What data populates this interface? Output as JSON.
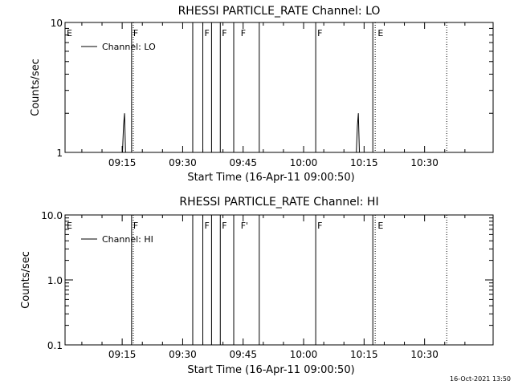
{
  "footer_timestamp": "16-Oct-2021 13:50",
  "chart_data": [
    {
      "type": "line",
      "title": "RHESSI PARTICLE_RATE Channel: LO",
      "xlabel": "Start Time (16-Apr-11 09:00:50)",
      "ylabel": "Counts/sec",
      "yscale": "log",
      "ylim": [
        1,
        10
      ],
      "y_ticks": [
        "1",
        "10"
      ],
      "x_range": [
        "09:00:50",
        "10:47:00"
      ],
      "x_ticks": [
        "09:15",
        "09:30",
        "09:45",
        "10:00",
        "10:15",
        "10:30"
      ],
      "legend": "Channel: LO",
      "legend_position": "top-left",
      "series": [
        {
          "name": "Channel: LO",
          "x": [
            "09:15:05",
            "09:15:20",
            "09:15:35",
            "09:15:50",
            "10:13:05",
            "10:13:20",
            "10:13:35",
            "10:13:50"
          ],
          "y": [
            1,
            1.6,
            2.0,
            1,
            1,
            1.6,
            2.0,
            1
          ]
        }
      ],
      "solid_markers": [
        "09:17:20",
        "09:32:30",
        "09:35:00",
        "09:37:10",
        "09:39:20",
        "09:42:40",
        "09:49:00",
        "10:03:00",
        "10:17:10"
      ],
      "dotted_markers": [
        "09:17:45",
        "10:17:45",
        "10:35:30"
      ],
      "marker_labels": [
        {
          "x": "09:00:50",
          "text": "E"
        },
        {
          "x": "09:17:20",
          "text": "F"
        },
        {
          "x": "09:35:00",
          "text": "F"
        },
        {
          "x": "09:39:20",
          "text": "F"
        },
        {
          "x": "09:44:00",
          "text": "F"
        },
        {
          "x": "10:03:00",
          "text": "F"
        },
        {
          "x": "10:18:00",
          "text": "E"
        }
      ]
    },
    {
      "type": "line",
      "title": "RHESSI PARTICLE_RATE Channel: HI",
      "xlabel": "Start Time (16-Apr-11 09:00:50)",
      "ylabel": "Counts/sec",
      "yscale": "log",
      "ylim": [
        0.1,
        10
      ],
      "y_ticks": [
        "0.1",
        "1.0",
        "10.0"
      ],
      "x_range": [
        "09:00:50",
        "10:47:00"
      ],
      "x_ticks": [
        "09:15",
        "09:30",
        "09:45",
        "10:00",
        "10:15",
        "10:30"
      ],
      "legend": "Channel: HI",
      "legend_position": "top-left",
      "series": [
        {
          "name": "Channel: HI",
          "x": [],
          "y": []
        }
      ],
      "solid_markers": [
        "09:17:20",
        "09:32:30",
        "09:35:00",
        "09:37:10",
        "09:39:20",
        "09:42:40",
        "09:49:00",
        "10:03:00",
        "10:17:10"
      ],
      "dotted_markers": [
        "09:17:45",
        "10:17:45",
        "10:35:30"
      ],
      "marker_labels": [
        {
          "x": "09:00:50",
          "text": "E"
        },
        {
          "x": "09:17:20",
          "text": "F"
        },
        {
          "x": "09:35:00",
          "text": "F"
        },
        {
          "x": "09:39:20",
          "text": "F"
        },
        {
          "x": "09:44:00",
          "text": "F'"
        },
        {
          "x": "10:03:00",
          "text": "F"
        },
        {
          "x": "10:18:00",
          "text": "E"
        }
      ]
    }
  ]
}
